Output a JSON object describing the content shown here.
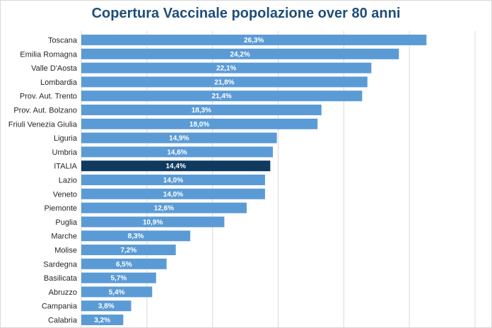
{
  "chart_data": {
    "type": "bar",
    "orientation": "horizontal",
    "title": "Copertura Vaccinale popolazione over 80 anni",
    "xlabel": "",
    "ylabel": "",
    "xlim": [
      0,
      30
    ],
    "grid": true,
    "highlight_category": "ITALIA",
    "colors": {
      "bar": "#5b9bd5",
      "highlight": "#0f3a5f",
      "title": "#1f4e79"
    },
    "categories": [
      "Toscana",
      "Emilia Romagna",
      "Valle D'Aosta",
      "Lombardia",
      "Prov. Aut. Trento",
      "Prov. Aut. Bolzano",
      "Friuli Venezia Giulia",
      "Liguria",
      "Umbria",
      "ITALIA",
      "Lazio",
      "Veneto",
      "Piemonte",
      "Puglia",
      "Marche",
      "Molise",
      "Sardegna",
      "Basilicata",
      "Abruzzo",
      "Campania",
      "Calabria"
    ],
    "values": [
      26.3,
      24.2,
      22.1,
      21.8,
      21.4,
      18.3,
      18.0,
      14.9,
      14.6,
      14.4,
      14.0,
      14.0,
      12.6,
      10.9,
      8.3,
      7.2,
      6.5,
      5.7,
      5.4,
      3.8,
      3.2
    ],
    "value_labels": [
      "26,3%",
      "24,2%",
      "22,1%",
      "21,8%",
      "21,4%",
      "18,3%",
      "18,0%",
      "14,9%",
      "14,6%",
      "14,4%",
      "14,0%",
      "14,0%",
      "12,6%",
      "10,9%",
      "8,3%",
      "7,2%",
      "6,5%",
      "5,7%",
      "5,4%",
      "3,8%",
      "3,2%"
    ]
  }
}
